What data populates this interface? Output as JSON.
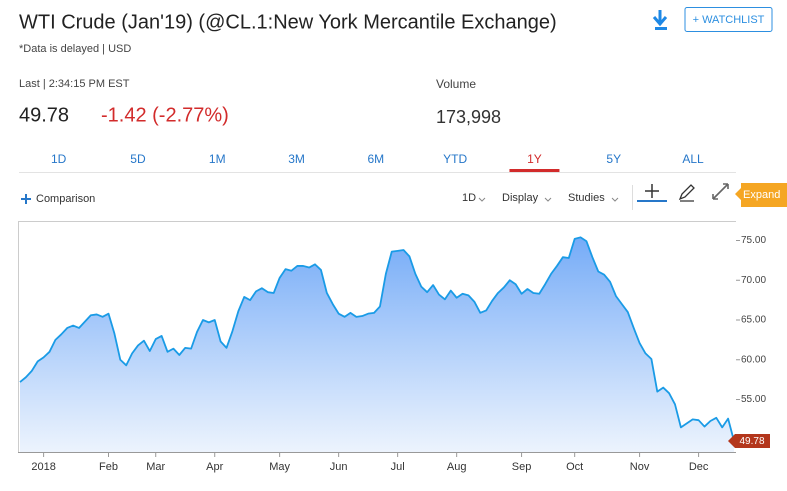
{
  "header": {
    "title": "WTI Crude (Jan'19) (@CL.1:New York Mercantile Exchange)",
    "note": "*Data is delayed | USD",
    "watchlist": "+ WATCHLIST"
  },
  "quote": {
    "last_label": "Last | 2:34:15 PM EST",
    "last": "49.78",
    "change": "-1.42 (-2.77%)",
    "volume_label": "Volume",
    "volume": "173,998"
  },
  "tabs": {
    "items": [
      "1D",
      "5D",
      "1M",
      "3M",
      "6M",
      "YTD",
      "1Y",
      "5Y",
      "ALL"
    ],
    "active": "1Y"
  },
  "toolbar": {
    "comparison": "Comparison",
    "interval": "1D",
    "display": "Display",
    "studies": "Studies",
    "expand": "Expand"
  },
  "chart_data": {
    "type": "area",
    "categories": [
      null,
      null,
      null,
      null,
      "2018",
      null,
      null,
      null,
      null,
      null,
      null,
      null,
      null,
      null,
      null,
      "Feb",
      null,
      null,
      null,
      null,
      null,
      null,
      null,
      "Mar",
      null,
      null,
      null,
      null,
      null,
      null,
      null,
      null,
      null,
      "Apr",
      null,
      null,
      null,
      null,
      null,
      null,
      null,
      null,
      null,
      null,
      "May",
      null,
      null,
      null,
      null,
      null,
      null,
      null,
      null,
      null,
      "Jun",
      null,
      null,
      null,
      null,
      null,
      null,
      null,
      null,
      null,
      "Jul",
      null,
      null,
      null,
      null,
      null,
      null,
      null,
      null,
      null,
      "Aug",
      null,
      null,
      null,
      null,
      null,
      null,
      null,
      null,
      null,
      null,
      "Sep",
      null,
      null,
      null,
      null,
      null,
      null,
      null,
      null,
      "Oct",
      null,
      null,
      null,
      null,
      null,
      null,
      null,
      null,
      null,
      null,
      "Nov",
      null,
      null,
      null,
      null,
      null,
      null,
      null,
      null,
      null,
      "Dec",
      null,
      null,
      null,
      null,
      null,
      null
    ],
    "series": [
      {
        "color": "#1a9be6",
        "values": [
          57.2,
          57.8,
          58.6,
          59.8,
          60.3,
          61.0,
          62.5,
          63.2,
          64.0,
          64.3,
          64.0,
          64.8,
          65.6,
          65.7,
          65.4,
          65.8,
          63.3,
          60.0,
          59.3,
          60.8,
          61.8,
          62.4,
          61.1,
          62.6,
          63.0,
          61.0,
          61.4,
          60.6,
          61.5,
          61.4,
          63.5,
          65.0,
          64.7,
          65.0,
          62.3,
          61.5,
          63.6,
          66.1,
          67.9,
          67.5,
          68.6,
          69.0,
          68.5,
          68.4,
          70.3,
          71.4,
          71.2,
          71.8,
          71.8,
          71.6,
          72.0,
          71.3,
          68.4,
          67.0,
          65.8,
          65.4,
          65.9,
          65.4,
          65.5,
          65.8,
          65.9,
          66.7,
          70.8,
          73.6,
          73.7,
          73.8,
          73.0,
          70.8,
          69.2,
          68.5,
          69.4,
          68.2,
          67.6,
          68.7,
          67.8,
          68.3,
          68.1,
          67.3,
          65.9,
          66.2,
          67.4,
          68.4,
          69.1,
          70.0,
          69.5,
          68.3,
          68.9,
          68.4,
          68.3,
          69.5,
          70.8,
          71.8,
          72.9,
          72.8,
          75.2,
          75.4,
          74.9,
          72.9,
          71.1,
          70.7,
          69.8,
          68.0,
          67.0,
          66.0,
          64.0,
          62.1,
          60.8,
          60.1,
          56.0,
          56.5,
          55.8,
          54.4,
          51.5,
          52.0,
          52.5,
          52.4,
          51.6,
          52.3,
          52.7,
          51.5,
          52.6,
          49.78
        ]
      }
    ],
    "ylim": [
      48.4,
      77.2
    ],
    "yticks": [
      {
        "value": 55,
        "label": "55.00"
      },
      {
        "value": 60,
        "label": "60.00"
      },
      {
        "value": 65,
        "label": "65.00"
      },
      {
        "value": 70,
        "label": "70.00"
      },
      {
        "value": 75,
        "label": "75.00"
      }
    ],
    "grid": false,
    "last_marker_color": "#b3361c"
  }
}
